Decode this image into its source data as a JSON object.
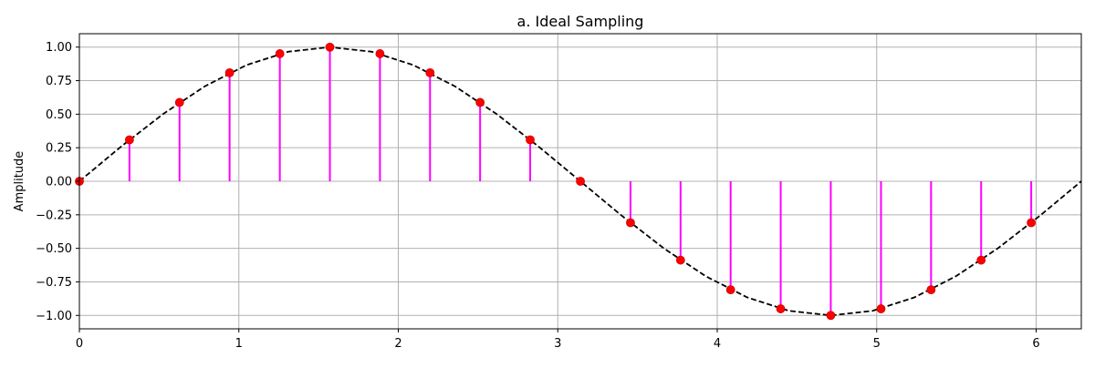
{
  "chart_data": {
    "type": "line",
    "title": "a. Ideal Sampling",
    "xlabel": "",
    "ylabel": "Amplitude",
    "xlim": [
      0,
      6.283185307
    ],
    "ylim": [
      -1.1,
      1.1
    ],
    "xticks": [
      0,
      1,
      2,
      3,
      4,
      5,
      6
    ],
    "xtick_labels": [
      "0",
      "1",
      "2",
      "3",
      "4",
      "5",
      "6"
    ],
    "yticks": [
      -1.0,
      -0.75,
      -0.5,
      -0.25,
      0.0,
      0.25,
      0.5,
      0.75,
      1.0
    ],
    "ytick_labels": [
      "−1.00",
      "−0.75",
      "−0.50",
      "−0.25",
      "0.00",
      "0.25",
      "0.50",
      "0.75",
      "1.00"
    ],
    "grid": true,
    "legend": "none",
    "series": [
      {
        "kind": "curve",
        "style": "dashed",
        "color": "#000000",
        "x": [
          0,
          0.2618,
          0.5236,
          0.7854,
          1.0472,
          1.309,
          1.5708,
          1.8326,
          2.0944,
          2.3562,
          2.618,
          2.8798,
          3.1416,
          3.4034,
          3.6652,
          3.927,
          4.1888,
          4.4506,
          4.7124,
          4.9742,
          5.236,
          5.4978,
          5.7596,
          6.0214,
          6.2832
        ],
        "y": [
          0,
          0.2588,
          0.5,
          0.7071,
          0.866,
          0.9659,
          1,
          0.9659,
          0.866,
          0.7071,
          0.5,
          0.2588,
          0,
          -0.2588,
          -0.5,
          -0.7071,
          -0.866,
          -0.9659,
          -1,
          -0.9659,
          -0.866,
          -0.7071,
          -0.5,
          -0.2588,
          0
        ]
      },
      {
        "kind": "stems",
        "color": "#ff00ff",
        "x": [
          0,
          0.314,
          0.628,
          0.942,
          1.257,
          1.571,
          1.885,
          2.199,
          2.513,
          2.827,
          3.142,
          3.456,
          3.77,
          4.084,
          4.398,
          4.712,
          5.027,
          5.341,
          5.655,
          5.969
        ],
        "y": [
          0,
          0.309,
          0.588,
          0.809,
          0.951,
          1.0,
          0.951,
          0.809,
          0.588,
          0.309,
          0,
          -0.309,
          -0.588,
          -0.809,
          -0.951,
          -1.0,
          -0.951,
          -0.809,
          -0.588,
          -0.309
        ]
      },
      {
        "kind": "markers",
        "color": "#ff0000",
        "x": [
          0,
          0.314,
          0.628,
          0.942,
          1.257,
          1.571,
          1.885,
          2.199,
          2.513,
          2.827,
          3.142,
          3.456,
          3.77,
          4.084,
          4.398,
          4.712,
          5.027,
          5.341,
          5.655,
          5.969
        ],
        "y": [
          0,
          0.309,
          0.588,
          0.809,
          0.951,
          1.0,
          0.951,
          0.809,
          0.588,
          0.309,
          0,
          -0.309,
          -0.588,
          -0.809,
          -0.951,
          -1.0,
          -0.951,
          -0.809,
          -0.588,
          -0.309
        ]
      }
    ]
  }
}
